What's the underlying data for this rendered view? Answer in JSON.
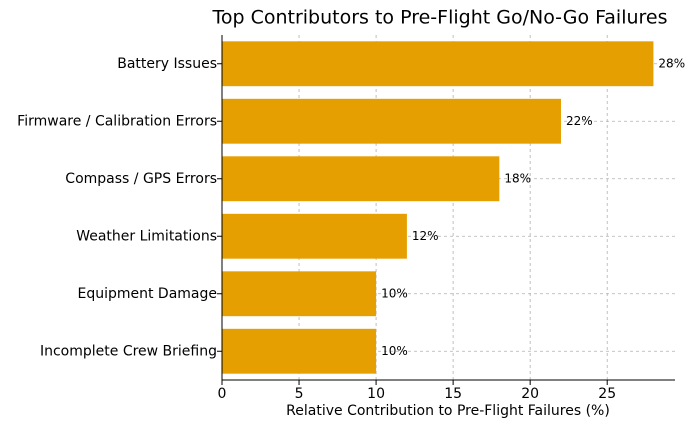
{
  "chart_data": {
    "type": "barh",
    "title": "Top Contributors to Pre-Flight Go/No-Go Failures",
    "xlabel": "Relative Contribution to Pre-Flight Failures (%)",
    "categories": [
      "Battery Issues",
      "Firmware / Calibration Errors",
      "Compass / GPS Errors",
      "Weather Limitations",
      "Equipment Damage",
      "Incomplete Crew Briefing"
    ],
    "values": [
      28,
      22,
      18,
      12,
      10,
      10
    ],
    "value_labels": [
      "28%",
      "22%",
      "18%",
      "12%",
      "10%",
      "10%"
    ],
    "color": "#E69F00",
    "xlim": [
      0,
      29.4
    ],
    "xticks": [
      0,
      5,
      10,
      15,
      20,
      25
    ],
    "grid": true
  }
}
